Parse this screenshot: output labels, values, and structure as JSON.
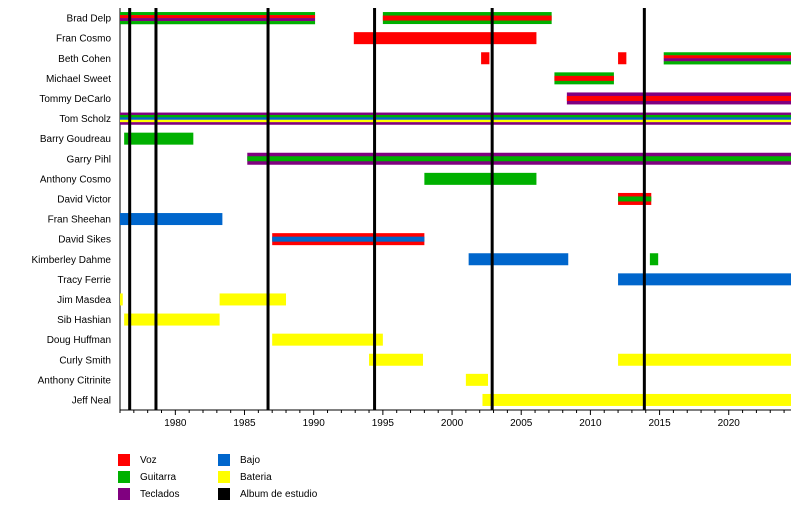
{
  "chart_data": {
    "type": "timeline",
    "xlim": [
      1976,
      2024.5
    ],
    "x_ticks": [
      1980,
      1985,
      1990,
      1995,
      2000,
      2005,
      2010,
      2015,
      2020
    ],
    "album_lines": [
      1976.7,
      1978.6,
      1986.7,
      1994.4,
      2002.9,
      2013.9
    ],
    "colors": {
      "Voz": "#ff0000",
      "Guitarra": "#00b000",
      "Teclados": "#800080",
      "Bajo": "#0066cc",
      "Bateria": "#ffff00",
      "Album de estudio": "#000000"
    },
    "members": [
      {
        "name": "Brad Delp",
        "periods": [
          {
            "start": 1976,
            "end": 1990.1,
            "roles": [
              "Voz",
              "Guitarra",
              "Teclados"
            ]
          },
          {
            "start": 1995,
            "end": 2007.2,
            "roles": [
              "Voz",
              "Guitarra"
            ]
          }
        ]
      },
      {
        "name": "Fran Cosmo",
        "periods": [
          {
            "start": 1992.9,
            "end": 2006.1,
            "roles": [
              "Voz"
            ]
          }
        ]
      },
      {
        "name": "Beth Cohen",
        "periods": [
          {
            "start": 2002.1,
            "end": 2002.7,
            "roles": [
              "Voz"
            ]
          },
          {
            "start": 2012.0,
            "end": 2012.6,
            "roles": [
              "Voz"
            ]
          },
          {
            "start": 2015.3,
            "end": 2024.5,
            "roles": [
              "Voz",
              "Guitarra",
              "Teclados"
            ]
          }
        ]
      },
      {
        "name": "Michael Sweet",
        "periods": [
          {
            "start": 2007.4,
            "end": 2011.7,
            "roles": [
              "Voz",
              "Guitarra"
            ]
          }
        ]
      },
      {
        "name": "Tommy DeCarlo",
        "periods": [
          {
            "start": 2008.3,
            "end": 2024.5,
            "roles": [
              "Voz",
              "Teclados"
            ]
          }
        ]
      },
      {
        "name": "Tom Scholz",
        "periods": [
          {
            "start": 1976,
            "end": 2024.5,
            "roles": [
              "Guitarra",
              "Teclados",
              "Bajo",
              "Bateria"
            ]
          }
        ]
      },
      {
        "name": "Barry Goudreau",
        "periods": [
          {
            "start": 1976.3,
            "end": 1981.3,
            "roles": [
              "Guitarra"
            ]
          }
        ]
      },
      {
        "name": "Garry Pihl",
        "periods": [
          {
            "start": 1985.2,
            "end": 2024.5,
            "roles": [
              "Guitarra",
              "Teclados"
            ]
          }
        ]
      },
      {
        "name": "Anthony Cosmo",
        "periods": [
          {
            "start": 1998.0,
            "end": 2006.1,
            "roles": [
              "Guitarra"
            ]
          }
        ]
      },
      {
        "name": "David Victor",
        "periods": [
          {
            "start": 2012.0,
            "end": 2014.4,
            "roles": [
              "Guitarra",
              "Voz"
            ]
          }
        ]
      },
      {
        "name": "Fran Sheehan",
        "periods": [
          {
            "start": 1976,
            "end": 1983.4,
            "roles": [
              "Bajo"
            ]
          }
        ]
      },
      {
        "name": "David Sikes",
        "periods": [
          {
            "start": 1987.0,
            "end": 1998.0,
            "roles": [
              "Bajo",
              "Voz"
            ]
          }
        ]
      },
      {
        "name": "Kimberley Dahme",
        "periods": [
          {
            "start": 2001.2,
            "end": 2008.4,
            "roles": [
              "Bajo"
            ]
          },
          {
            "start": 2014.3,
            "end": 2014.9,
            "roles": [
              "Guitarra"
            ]
          }
        ]
      },
      {
        "name": "Tracy Ferrie",
        "periods": [
          {
            "start": 2012.0,
            "end": 2024.5,
            "roles": [
              "Bajo"
            ]
          }
        ]
      },
      {
        "name": "Jim Masdea",
        "periods": [
          {
            "start": 1976,
            "end": 1976.2,
            "roles": [
              "Bateria"
            ]
          },
          {
            "start": 1983.2,
            "end": 1988.0,
            "roles": [
              "Bateria"
            ]
          }
        ]
      },
      {
        "name": "Sib Hashian",
        "periods": [
          {
            "start": 1976.3,
            "end": 1983.2,
            "roles": [
              "Bateria"
            ]
          }
        ]
      },
      {
        "name": "Doug Huffman",
        "periods": [
          {
            "start": 1987.0,
            "end": 1995.0,
            "roles": [
              "Bateria"
            ]
          }
        ]
      },
      {
        "name": "Curly Smith",
        "periods": [
          {
            "start": 1994.0,
            "end": 1997.9,
            "roles": [
              "Bateria"
            ]
          },
          {
            "start": 2012.0,
            "end": 2024.5,
            "roles": [
              "Bateria"
            ]
          }
        ]
      },
      {
        "name": "Anthony Citrinite",
        "periods": [
          {
            "start": 2001.0,
            "end": 2002.6,
            "roles": [
              "Bateria"
            ]
          }
        ]
      },
      {
        "name": "Jeff Neal",
        "periods": [
          {
            "start": 2002.2,
            "end": 2024.5,
            "roles": [
              "Bateria"
            ]
          }
        ]
      }
    ],
    "legend": [
      {
        "label": "Voz",
        "color": "#ff0000"
      },
      {
        "label": "Guitarra",
        "color": "#00b000"
      },
      {
        "label": "Teclados",
        "color": "#800080"
      },
      {
        "label": "Bajo",
        "color": "#0066cc"
      },
      {
        "label": "Bateria",
        "color": "#ffff00"
      },
      {
        "label": "Album de estudio",
        "color": "#000000"
      }
    ]
  }
}
